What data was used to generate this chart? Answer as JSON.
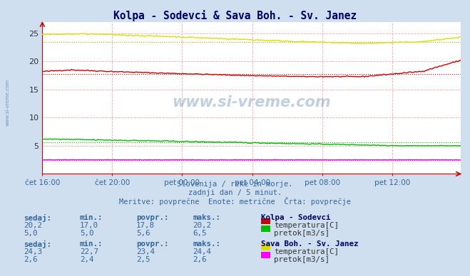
{
  "title": "Kolpa - Sodevci & Sava Boh. - Sv. Janez",
  "subtitle1": "Slovenija / reke in morje.",
  "subtitle2": "zadnji dan / 5 minut.",
  "subtitle3": "Meritve: povprečne  Enote: metrične  Črta: povprečje",
  "bg_color": "#d0dff0",
  "plot_bg_color": "#ffffff",
  "title_color": "#000066",
  "text_color": "#336699",
  "watermark": "www.si-vreme.com",
  "n_points": 288,
  "xlim": [
    0,
    287
  ],
  "ylim": [
    0,
    27
  ],
  "yticks": [
    5,
    10,
    15,
    20,
    25
  ],
  "xtick_labels": [
    "čet 16:00",
    "čet 20:00",
    "pet 00:00",
    "pet 04:00",
    "pet 08:00",
    "pet 12:00"
  ],
  "xtick_positions": [
    0,
    48,
    96,
    144,
    192,
    240
  ],
  "kolpa_temp_color": "#cc0000",
  "kolpa_flow_color": "#00bb00",
  "sava_temp_color": "#dddd00",
  "sava_flow_color": "#ff00ff",
  "kolpa_temp_avg": 17.8,
  "kolpa_flow_avg": 5.6,
  "sava_temp_avg": 23.4,
  "sava_flow_avg": 2.5,
  "kolpa_temp_min": 17.0,
  "kolpa_temp_max": 20.2,
  "kolpa_temp_now": 20.2,
  "kolpa_flow_min": 5.0,
  "kolpa_flow_max": 6.5,
  "kolpa_flow_now": 5.0,
  "sava_temp_min": 22.7,
  "sava_temp_max": 24.4,
  "sava_temp_now": 24.3,
  "sava_flow_min": 2.4,
  "sava_flow_max": 2.6,
  "sava_flow_now": 2.6,
  "table_header": [
    "sedaj:",
    "min.:",
    "povpr.:",
    "maks.:"
  ],
  "station1_name": "Kolpa - Sodevci",
  "station2_name": "Sava Boh. - Sv. Janez",
  "label_temp": "temperatura[C]",
  "label_flow": "pretok[m3/s]"
}
